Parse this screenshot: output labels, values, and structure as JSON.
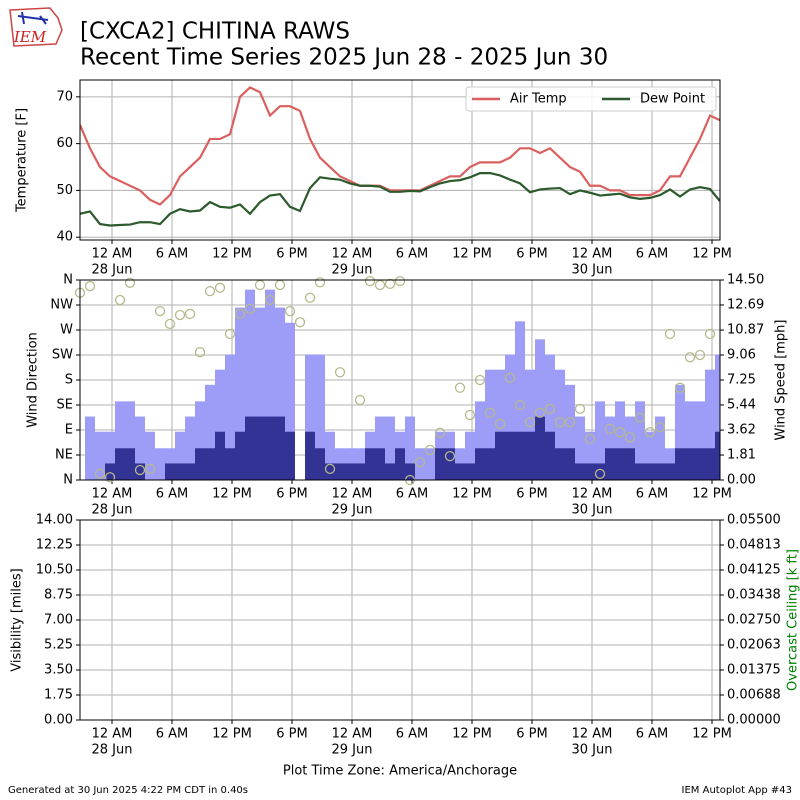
{
  "header": {
    "logo": "IEM",
    "title": "[CXCA2] CHITINA RAWS",
    "subtitle": "Recent Time Series 2025 Jun 28 - 2025 Jun 30"
  },
  "footer": {
    "timezone": "Plot Time Zone: America/Anchorage",
    "generated": "Generated at 30 Jun 2025 4:22 PM CDT in 0.40s",
    "app": "IEM Autoplot App #43"
  },
  "chart_data": [
    {
      "type": "line",
      "ylabel": "Temperature [F]",
      "grid": true,
      "legend": "upper right",
      "xlim": [
        "2025-06-27T20:48",
        "2025-06-30T12:48"
      ],
      "xticks": [
        {
          "value": "2025-06-28T00:00",
          "label": "12 AM",
          "sublabel": "28 Jun"
        },
        {
          "value": "2025-06-28T06:00",
          "label": "6 AM"
        },
        {
          "value": "2025-06-28T12:00",
          "label": "12 PM"
        },
        {
          "value": "2025-06-28T18:00",
          "label": "6 PM"
        },
        {
          "value": "2025-06-29T00:00",
          "label": "12 AM",
          "sublabel": "29 Jun"
        },
        {
          "value": "2025-06-29T06:00",
          "label": "6 AM"
        },
        {
          "value": "2025-06-29T12:00",
          "label": "12 PM"
        },
        {
          "value": "2025-06-29T18:00",
          "label": "6 PM"
        },
        {
          "value": "2025-06-30T00:00",
          "label": "12 AM",
          "sublabel": "30 Jun"
        },
        {
          "value": "2025-06-30T06:00",
          "label": "6 AM"
        },
        {
          "value": "2025-06-30T12:00",
          "label": "12 PM"
        }
      ],
      "ylim": [
        39.4,
        73.6
      ],
      "yticks": [
        40,
        50,
        60,
        70
      ],
      "x": [
        "2025-06-27T20:48",
        "2025-06-27T21:48",
        "2025-06-27T22:48",
        "2025-06-27T23:48",
        "2025-06-28T00:48",
        "2025-06-28T01:48",
        "2025-06-28T02:48",
        "2025-06-28T03:48",
        "2025-06-28T04:48",
        "2025-06-28T05:48",
        "2025-06-28T06:48",
        "2025-06-28T07:48",
        "2025-06-28T08:48",
        "2025-06-28T09:48",
        "2025-06-28T10:48",
        "2025-06-28T11:48",
        "2025-06-28T12:48",
        "2025-06-28T13:48",
        "2025-06-28T14:48",
        "2025-06-28T15:48",
        "2025-06-28T16:48",
        "2025-06-28T17:48",
        "2025-06-28T18:48",
        "2025-06-28T19:48",
        "2025-06-28T20:48",
        "2025-06-28T21:48",
        "2025-06-28T22:48",
        "2025-06-28T23:48",
        "2025-06-29T00:48",
        "2025-06-29T01:48",
        "2025-06-29T02:48",
        "2025-06-29T03:48",
        "2025-06-29T04:48",
        "2025-06-29T05:48",
        "2025-06-29T06:48",
        "2025-06-29T07:48",
        "2025-06-29T08:48",
        "2025-06-29T09:48",
        "2025-06-29T10:48",
        "2025-06-29T11:48",
        "2025-06-29T12:48",
        "2025-06-29T13:48",
        "2025-06-29T14:48",
        "2025-06-29T15:48",
        "2025-06-29T16:48",
        "2025-06-29T17:48",
        "2025-06-29T18:48",
        "2025-06-29T19:48",
        "2025-06-29T20:48",
        "2025-06-29T21:48",
        "2025-06-29T22:48",
        "2025-06-29T23:48",
        "2025-06-30T00:48",
        "2025-06-30T01:48",
        "2025-06-30T02:48",
        "2025-06-30T03:48",
        "2025-06-30T04:48",
        "2025-06-30T05:48",
        "2025-06-30T06:48",
        "2025-06-30T07:48",
        "2025-06-30T08:48",
        "2025-06-30T09:48",
        "2025-06-30T10:48",
        "2025-06-30T11:48",
        "2025-06-30T12:48"
      ],
      "series": [
        {
          "name": "Air Temp",
          "color": "#d9605f",
          "values": [
            64,
            59,
            55,
            53,
            52,
            51,
            50,
            48,
            47,
            49,
            53,
            55,
            57,
            61,
            61,
            62,
            70,
            72,
            71,
            66,
            68,
            68,
            67,
            61,
            57,
            55,
            53,
            52,
            51,
            51,
            51,
            50,
            50,
            50,
            50,
            51,
            52,
            53,
            53,
            55,
            56,
            56,
            56,
            57,
            59,
            59,
            58,
            59,
            57,
            55,
            54,
            51,
            51,
            50,
            50,
            49,
            49,
            49,
            50,
            53,
            53,
            57,
            61,
            66,
            65
          ]
        },
        {
          "name": "Dew Point",
          "color": "#2d5a2d",
          "values": [
            45,
            45.5,
            42.8,
            42.5,
            42.6,
            42.7,
            43.2,
            43.2,
            42.8,
            45,
            46,
            45.5,
            45.7,
            47.5,
            46.5,
            46.3,
            47,
            45,
            47.5,
            48.9,
            49.2,
            46.5,
            45.6,
            50.5,
            52.8,
            52.5,
            52.3,
            51.5,
            51,
            51,
            50.8,
            49.7,
            49.7,
            49.9,
            49.8,
            50.7,
            51.5,
            52,
            52.2,
            52.8,
            53.7,
            53.7,
            53.2,
            52.3,
            51.5,
            49.6,
            50.2,
            50.4,
            50.5,
            49.2,
            50,
            49.5,
            48.9,
            49.1,
            49.3,
            48.5,
            48.2,
            48.4,
            49,
            50.2,
            48.7,
            50.2,
            50.7,
            50.3,
            47.7
          ]
        }
      ]
    },
    {
      "type": "mixed",
      "ylabel": "Wind Direction",
      "y2label": "Wind Speed [mph]",
      "grid": true,
      "xlim": [
        "2025-06-27T20:48",
        "2025-06-30T12:48"
      ],
      "xticks": [
        {
          "value": "2025-06-28T00:00",
          "label": "12 AM",
          "sublabel": "28 Jun"
        },
        {
          "value": "2025-06-28T06:00",
          "label": "6 AM"
        },
        {
          "value": "2025-06-28T12:00",
          "label": "12 PM"
        },
        {
          "value": "2025-06-28T18:00",
          "label": "6 PM"
        },
        {
          "value": "2025-06-29T00:00",
          "label": "12 AM",
          "sublabel": "29 Jun"
        },
        {
          "value": "2025-06-29T06:00",
          "label": "6 AM"
        },
        {
          "value": "2025-06-29T12:00",
          "label": "12 PM"
        },
        {
          "value": "2025-06-29T18:00",
          "label": "6 PM"
        },
        {
          "value": "2025-06-30T00:00",
          "label": "12 AM",
          "sublabel": "30 Jun"
        },
        {
          "value": "2025-06-30T06:00",
          "label": "6 AM"
        },
        {
          "value": "2025-06-30T12:00",
          "label": "12 PM"
        }
      ],
      "ylim": [
        0,
        360
      ],
      "yticks": [
        {
          "value": 0,
          "label": "N"
        },
        {
          "value": 45,
          "label": "NE"
        },
        {
          "value": 90,
          "label": "E"
        },
        {
          "value": 135,
          "label": "SE"
        },
        {
          "value": 180,
          "label": "S"
        },
        {
          "value": 225,
          "label": "SW"
        },
        {
          "value": 270,
          "label": "W"
        },
        {
          "value": 315,
          "label": "NW"
        },
        {
          "value": 360,
          "label": "N"
        }
      ],
      "y2lim": [
        0,
        14.5
      ],
      "y2ticks": [
        {
          "value": 0,
          "label": "0.00"
        },
        1.81,
        3.62,
        5.44,
        7.25,
        9.06,
        10.87,
        12.69,
        {
          "value": 14.5,
          "label": "14.50"
        }
      ],
      "x": [
        "2025-06-27T20:48",
        "2025-06-27T21:48",
        "2025-06-27T22:48",
        "2025-06-27T23:48",
        "2025-06-28T00:48",
        "2025-06-28T01:48",
        "2025-06-28T02:48",
        "2025-06-28T03:48",
        "2025-06-28T04:48",
        "2025-06-28T05:48",
        "2025-06-28T06:48",
        "2025-06-28T07:48",
        "2025-06-28T08:48",
        "2025-06-28T09:48",
        "2025-06-28T10:48",
        "2025-06-28T11:48",
        "2025-06-28T12:48",
        "2025-06-28T13:48",
        "2025-06-28T14:48",
        "2025-06-28T15:48",
        "2025-06-28T16:48",
        "2025-06-28T17:48",
        "2025-06-28T18:48",
        "2025-06-28T19:48",
        "2025-06-28T20:48",
        "2025-06-28T21:48",
        "2025-06-28T22:48",
        "2025-06-28T23:48",
        "2025-06-29T00:48",
        "2025-06-29T01:48",
        "2025-06-29T02:48",
        "2025-06-29T03:48",
        "2025-06-29T04:48",
        "2025-06-29T05:48",
        "2025-06-29T06:48",
        "2025-06-29T07:48",
        "2025-06-29T08:48",
        "2025-06-29T09:48",
        "2025-06-29T10:48",
        "2025-06-29T11:48",
        "2025-06-29T12:48",
        "2025-06-29T13:48",
        "2025-06-29T14:48",
        "2025-06-29T15:48",
        "2025-06-29T16:48",
        "2025-06-29T17:48",
        "2025-06-29T18:48",
        "2025-06-29T19:48",
        "2025-06-29T20:48",
        "2025-06-29T21:48",
        "2025-06-29T22:48",
        "2025-06-29T23:48",
        "2025-06-30T00:48",
        "2025-06-30T01:48",
        "2025-06-30T02:48",
        "2025-06-30T03:48",
        "2025-06-30T04:48",
        "2025-06-30T05:48",
        "2025-06-30T06:48",
        "2025-06-30T07:48",
        "2025-06-30T08:48",
        "2025-06-30T09:48",
        "2025-06-30T10:48",
        "2025-06-30T11:48",
        "2025-06-30T12:48"
      ],
      "series": [
        {
          "kind": "bar",
          "axis": "y2",
          "color": "#9d9df7",
          "values": [
            null,
            4.6,
            3.5,
            3.5,
            5.7,
            5.7,
            4.6,
            3.5,
            2.3,
            2.3,
            3.5,
            4.6,
            5.7,
            6.9,
            8.0,
            9.1,
            12.5,
            13.8,
            12.5,
            13.8,
            12.5,
            11.4,
            null,
            9.1,
            9.1,
            3.5,
            2.3,
            2.3,
            2.3,
            3.5,
            4.6,
            4.6,
            3.5,
            4.6,
            2.3,
            2.3,
            3.5,
            3.5,
            2.3,
            3.5,
            5.7,
            8.0,
            8.0,
            9.1,
            11.5,
            8.0,
            10.2,
            9.1,
            8.0,
            6.9,
            4.6,
            3.5,
            5.7,
            4.6,
            5.7,
            4.6,
            5.7,
            3.5,
            4.6,
            2.3,
            6.9,
            5.7,
            5.7,
            8.0,
            9.1
          ]
        },
        {
          "kind": "bar",
          "axis": "y2",
          "color": "#333396",
          "values": [
            null,
            0,
            0,
            1.2,
            2.3,
            2.3,
            1.2,
            0,
            0,
            1.2,
            1.2,
            1.2,
            2.3,
            2.3,
            3.5,
            2.3,
            3.5,
            4.6,
            4.6,
            4.6,
            4.6,
            3.5,
            null,
            3.5,
            2.3,
            1.2,
            1.2,
            1.2,
            1.2,
            2.3,
            2.3,
            1.2,
            2.3,
            1.2,
            0,
            0,
            2.3,
            2.3,
            1.2,
            1.2,
            2.3,
            2.3,
            3.5,
            3.5,
            3.5,
            3.5,
            4.6,
            3.5,
            2.3,
            2.3,
            1.2,
            1.2,
            1.2,
            2.3,
            2.3,
            2.3,
            1.2,
            1.2,
            1.2,
            1.2,
            2.3,
            2.3,
            2.3,
            2.3,
            3.5
          ]
        },
        {
          "kind": "scatter",
          "axis": "y",
          "color": "#b5b98a",
          "values": [
            337,
            349,
            11,
            5,
            324,
            355,
            18,
            20,
            304,
            281,
            297,
            299,
            230,
            340,
            346,
            263,
            299,
            308,
            351,
            324,
            351,
            304,
            284,
            328,
            356,
            20,
            194,
            null,
            144,
            358,
            351,
            353,
            358,
            0,
            32,
            54,
            85,
            43,
            166,
            117,
            180,
            121,
            101,
            184,
            135,
            104,
            121,
            128,
            104,
            104,
            128,
            74,
            11,
            92,
            86,
            77,
            112,
            86,
            95,
            263,
            166,
            221,
            225,
            263,
            null
          ]
        }
      ]
    },
    {
      "type": "line",
      "ylabel": "Visibility [miles]",
      "y2label": "Overcast Ceiling [k ft]",
      "y2label_color": "#008000",
      "grid": true,
      "xlim": [
        "2025-06-27T20:48",
        "2025-06-30T12:48"
      ],
      "xticks": [
        {
          "value": "2025-06-28T00:00",
          "label": "12 AM",
          "sublabel": "28 Jun"
        },
        {
          "value": "2025-06-28T06:00",
          "label": "6 AM"
        },
        {
          "value": "2025-06-28T12:00",
          "label": "12 PM"
        },
        {
          "value": "2025-06-28T18:00",
          "label": "6 PM"
        },
        {
          "value": "2025-06-29T00:00",
          "label": "12 AM",
          "sublabel": "29 Jun"
        },
        {
          "value": "2025-06-29T06:00",
          "label": "6 AM"
        },
        {
          "value": "2025-06-29T12:00",
          "label": "12 PM"
        },
        {
          "value": "2025-06-29T18:00",
          "label": "6 PM"
        },
        {
          "value": "2025-06-30T00:00",
          "label": "12 AM",
          "sublabel": "30 Jun"
        },
        {
          "value": "2025-06-30T06:00",
          "label": "6 AM"
        },
        {
          "value": "2025-06-30T12:00",
          "label": "12 PM"
        }
      ],
      "ylim": [
        0,
        14
      ],
      "yticks": [
        {
          "value": 0,
          "label": "0.00"
        },
        1.75,
        {
          "value": 3.5,
          "label": "3.50"
        },
        5.25,
        {
          "value": 7,
          "label": "7.00"
        },
        8.75,
        {
          "value": 10.5,
          "label": "10.50"
        },
        12.25,
        {
          "value": 14,
          "label": "14.00"
        }
      ],
      "y2lim": [
        0,
        0.055
      ],
      "y2ticks": [
        {
          "value": 0,
          "label": "0.00000"
        },
        {
          "value": 0.006875,
          "label": "0.00688"
        },
        {
          "value": 0.01375,
          "label": "0.01375"
        },
        {
          "value": 0.020625,
          "label": "0.02063"
        },
        {
          "value": 0.0275,
          "label": "0.02750"
        },
        {
          "value": 0.034375,
          "label": "0.03438"
        },
        {
          "value": 0.04125,
          "label": "0.04125"
        },
        {
          "value": 0.048125,
          "label": "0.04813"
        },
        {
          "value": 0.055,
          "label": "0.05500"
        }
      ],
      "series": []
    }
  ]
}
